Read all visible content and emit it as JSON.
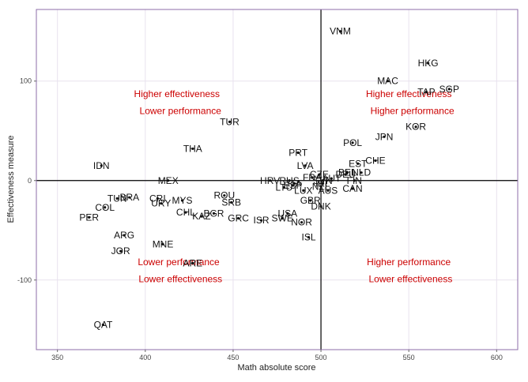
{
  "chart_data": {
    "type": "scatter",
    "title": "",
    "xlabel": "Math absolute score",
    "ylabel": "Effectiveness measure",
    "xlim": [
      338,
      612
    ],
    "ylim": [
      -170,
      172
    ],
    "xticks": [
      350,
      400,
      450,
      500,
      550,
      600
    ],
    "yticks": [
      -100,
      0,
      100
    ],
    "ref_x": 500,
    "ref_y": 0,
    "grid": true,
    "colors": {
      "point": "#111111",
      "label": "#111111",
      "reference_line": "#000000",
      "quadrant_text": "#cc0000",
      "frame": "#8c6ea8",
      "grid": "#e8e2ee"
    },
    "points": [
      {
        "label": "VNM",
        "x": 511,
        "y": 150
      },
      {
        "label": "HKG",
        "x": 561,
        "y": 118
      },
      {
        "label": "MAC",
        "x": 538,
        "y": 100
      },
      {
        "label": "TAP",
        "x": 560,
        "y": 89
      },
      {
        "label": "SGP",
        "x": 573,
        "y": 92
      },
      {
        "label": "KOR",
        "x": 554,
        "y": 54
      },
      {
        "label": "JPN",
        "x": 536,
        "y": 44
      },
      {
        "label": "POL",
        "x": 518,
        "y": 38
      },
      {
        "label": "CHE",
        "x": 531,
        "y": 20
      },
      {
        "label": "EST",
        "x": 521,
        "y": 17
      },
      {
        "label": "NLD",
        "x": 523,
        "y": 8
      },
      {
        "label": "BEL",
        "x": 515,
        "y": 8
      },
      {
        "label": "DEU",
        "x": 514,
        "y": 6
      },
      {
        "label": "FIN",
        "x": 519,
        "y": 0
      },
      {
        "label": "CAN",
        "x": 518,
        "y": -8
      },
      {
        "label": "AUS",
        "x": 504,
        "y": -10
      },
      {
        "label": "AUT",
        "x": 506,
        "y": 2
      },
      {
        "label": "SVN",
        "x": 501,
        "y": 0
      },
      {
        "label": "NZL",
        "x": 500,
        "y": -6
      },
      {
        "label": "CZE",
        "x": 499,
        "y": 6
      },
      {
        "label": "FRA",
        "x": 495,
        "y": 3
      },
      {
        "label": "IRL",
        "x": 501,
        "y": -3
      },
      {
        "label": "GBR",
        "x": 494,
        "y": -20
      },
      {
        "label": "DNK",
        "x": 500,
        "y": -26
      },
      {
        "label": "LVA",
        "x": 491,
        "y": 15
      },
      {
        "label": "PRT",
        "x": 487,
        "y": 28
      },
      {
        "label": "HRV",
        "x": 471,
        "y": 0
      },
      {
        "label": "RUS",
        "x": 482,
        "y": 0
      },
      {
        "label": "ITA",
        "x": 485,
        "y": -3
      },
      {
        "label": "ESP",
        "x": 484,
        "y": -5
      },
      {
        "label": "LTU",
        "x": 479,
        "y": -7
      },
      {
        "label": "LUX",
        "x": 490,
        "y": -10
      },
      {
        "label": "USA",
        "x": 481,
        "y": -33
      },
      {
        "label": "SWE",
        "x": 478,
        "y": -38
      },
      {
        "label": "NOR",
        "x": 489,
        "y": -42
      },
      {
        "label": "ISL",
        "x": 493,
        "y": -57
      },
      {
        "label": "ISR",
        "x": 466,
        "y": -40
      },
      {
        "label": "GRC",
        "x": 453,
        "y": -38
      },
      {
        "label": "SRB",
        "x": 449,
        "y": -22
      },
      {
        "label": "ROU",
        "x": 445,
        "y": -15
      },
      {
        "label": "BGR",
        "x": 439,
        "y": -33
      },
      {
        "label": "KAZ",
        "x": 432,
        "y": -36
      },
      {
        "label": "CHL",
        "x": 423,
        "y": -32
      },
      {
        "label": "MYS",
        "x": 421,
        "y": -20
      },
      {
        "label": "CRI",
        "x": 407,
        "y": -18
      },
      {
        "label": "URY",
        "x": 409,
        "y": -23
      },
      {
        "label": "MEX",
        "x": 413,
        "y": 0
      },
      {
        "label": "THA",
        "x": 427,
        "y": 32
      },
      {
        "label": "TUR",
        "x": 448,
        "y": 59
      },
      {
        "label": "IDN",
        "x": 375,
        "y": 15
      },
      {
        "label": "BRA",
        "x": 391,
        "y": -17
      },
      {
        "label": "TUN",
        "x": 384,
        "y": -18
      },
      {
        "label": "COL",
        "x": 377,
        "y": -27
      },
      {
        "label": "PER",
        "x": 368,
        "y": -37
      },
      {
        "label": "ARG",
        "x": 388,
        "y": -55
      },
      {
        "label": "JOR",
        "x": 386,
        "y": -71
      },
      {
        "label": "MNE",
        "x": 410,
        "y": -64
      },
      {
        "label": "ARE",
        "x": 427,
        "y": -83
      },
      {
        "label": "QAT",
        "x": 376,
        "y": -145
      }
    ],
    "annotations": [
      {
        "text": "Higher effectiveness",
        "x": 418,
        "y": 87
      },
      {
        "text": "Lower performance",
        "x": 420,
        "y": 70
      },
      {
        "text": "Higher effectiveness",
        "x": 550,
        "y": 87
      },
      {
        "text": "Higher performance",
        "x": 552,
        "y": 70
      },
      {
        "text": "Lower performance",
        "x": 419,
        "y": -82
      },
      {
        "text": "Lower effectiveness",
        "x": 420,
        "y": -99
      },
      {
        "text": "Higher performance",
        "x": 550,
        "y": -82
      },
      {
        "text": "Lower effectiveness",
        "x": 551,
        "y": -99
      }
    ]
  }
}
